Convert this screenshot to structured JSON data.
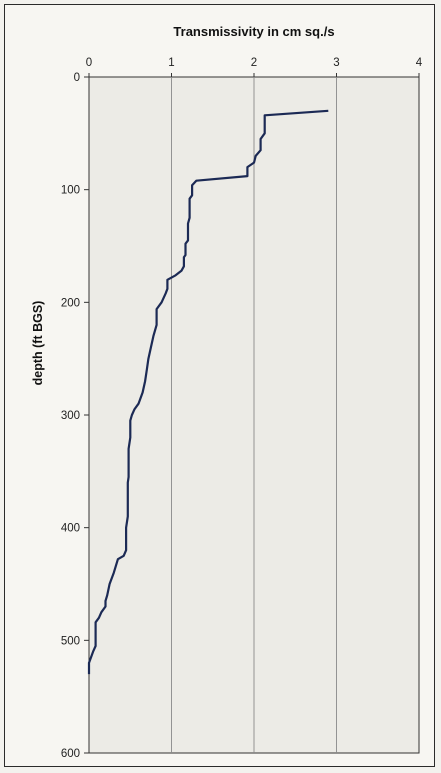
{
  "chart_data": {
    "type": "line",
    "title": "Transmissivity in cm sq./s",
    "xlabel": "",
    "ylabel": "depth (ft BGS)",
    "xlim": [
      0,
      4
    ],
    "ylim": [
      0,
      600
    ],
    "y_inverted": true,
    "x_ticks": [
      "0",
      "1",
      "2",
      "3",
      "4"
    ],
    "y_ticks": [
      "0",
      "100",
      "200",
      "300",
      "400",
      "500",
      "600"
    ],
    "x_axis_position": "top",
    "grid": "vertical",
    "line_color": "#1c2a55",
    "series": [
      {
        "name": "",
        "x": [
          2.9,
          2.13,
          2.13,
          2.08,
          2.08,
          2.02,
          2.0,
          1.92,
          1.92,
          1.3,
          1.25,
          1.25,
          1.22,
          1.22,
          1.2,
          1.2,
          1.17,
          1.17,
          1.15,
          1.15,
          1.12,
          1.05,
          0.95,
          0.95,
          0.93,
          0.88,
          0.82,
          0.82,
          0.78,
          0.75,
          0.72,
          0.7,
          0.68,
          0.65,
          0.6,
          0.55,
          0.52,
          0.5,
          0.5,
          0.48,
          0.48,
          0.47,
          0.47,
          0.45,
          0.45,
          0.42,
          0.35,
          0.3,
          0.25,
          0.22,
          0.2,
          0.2,
          0.15,
          0.12,
          0.08,
          0.08,
          0.05,
          0.0,
          0.0
        ],
        "y": [
          30,
          34,
          50,
          55,
          65,
          70,
          76,
          80,
          88,
          92,
          96,
          105,
          108,
          125,
          130,
          145,
          148,
          158,
          160,
          168,
          172,
          176,
          180,
          188,
          192,
          200,
          206,
          220,
          230,
          240,
          250,
          260,
          270,
          280,
          290,
          295,
          300,
          305,
          320,
          330,
          355,
          360,
          390,
          400,
          420,
          425,
          428,
          440,
          450,
          460,
          465,
          470,
          475,
          480,
          484,
          505,
          510,
          520,
          530
        ]
      }
    ]
  }
}
